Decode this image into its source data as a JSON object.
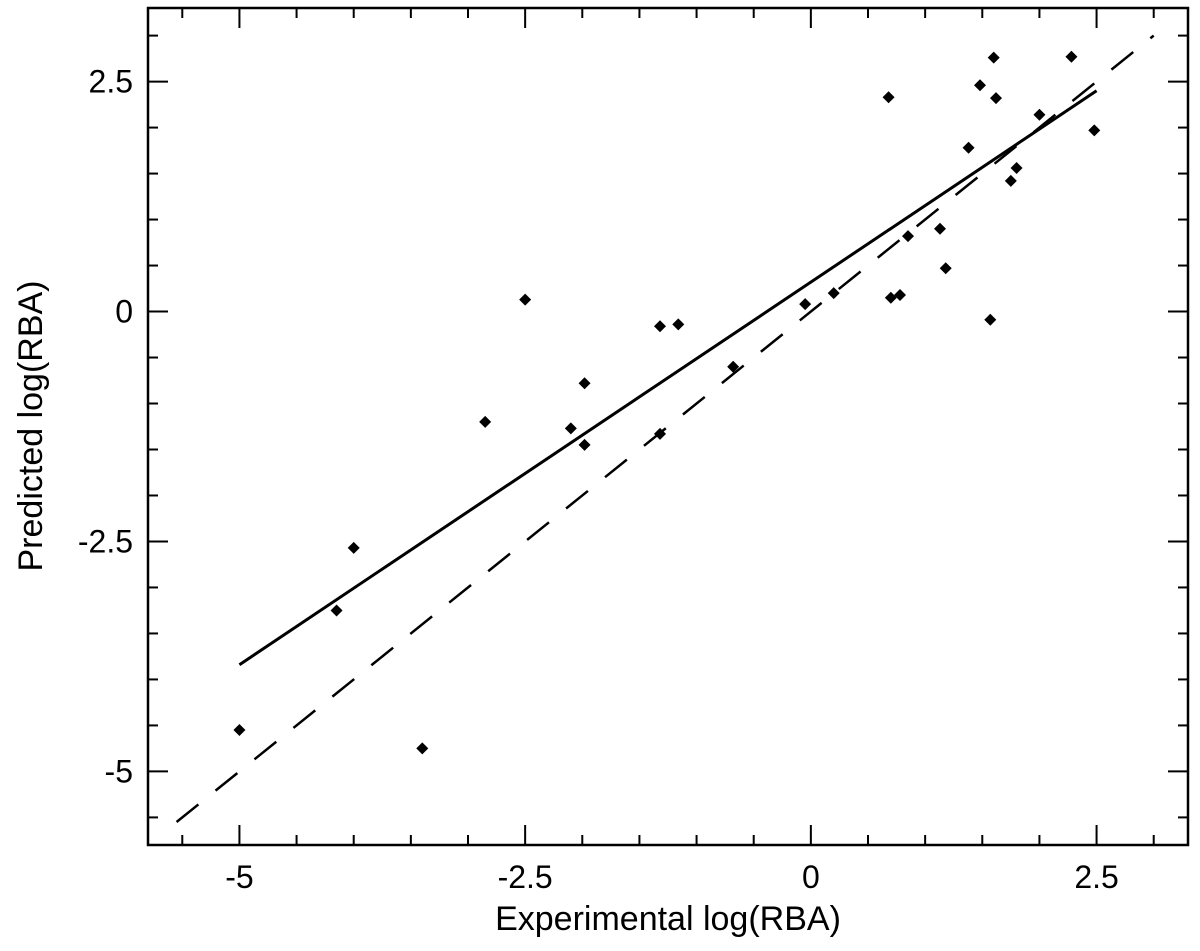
{
  "chart_data": {
    "type": "scatter",
    "title": "",
    "xlabel": "Experimental log(RBA)",
    "ylabel": "Predicted log(RBA)",
    "xlim": [
      -5.8,
      3.3
    ],
    "ylim": [
      -5.8,
      3.3
    ],
    "major_ticks": [
      -5,
      -2.5,
      0,
      2.5
    ],
    "tick_labels": [
      "-5",
      "-2.5",
      "0",
      "2.5"
    ],
    "minor_ticks": [
      -5.5,
      -4.5,
      -4.0,
      -3.5,
      -3.0,
      -2.0,
      -1.5,
      -1.0,
      -0.5,
      0.5,
      1.0,
      1.5,
      2.0,
      3.0
    ],
    "grid": false,
    "legend": "none",
    "marker_color": "#000000",
    "points": [
      {
        "x": -5.0,
        "y": -4.55
      },
      {
        "x": -4.15,
        "y": -3.25
      },
      {
        "x": -4.0,
        "y": -2.57
      },
      {
        "x": -3.4,
        "y": -4.75
      },
      {
        "x": -2.85,
        "y": -1.2
      },
      {
        "x": -2.5,
        "y": 0.13
      },
      {
        "x": -2.1,
        "y": -1.27
      },
      {
        "x": -1.98,
        "y": -0.78
      },
      {
        "x": -1.98,
        "y": -1.45
      },
      {
        "x": -1.32,
        "y": -1.33
      },
      {
        "x": -1.32,
        "y": -0.16
      },
      {
        "x": -1.16,
        "y": -0.14
      },
      {
        "x": -0.68,
        "y": -0.6
      },
      {
        "x": -0.05,
        "y": 0.08
      },
      {
        "x": 0.2,
        "y": 0.2
      },
      {
        "x": 0.68,
        "y": 2.33
      },
      {
        "x": 0.7,
        "y": 0.15
      },
      {
        "x": 0.78,
        "y": 0.18
      },
      {
        "x": 0.85,
        "y": 0.82
      },
      {
        "x": 1.13,
        "y": 0.9
      },
      {
        "x": 1.18,
        "y": 0.47
      },
      {
        "x": 1.38,
        "y": 1.78
      },
      {
        "x": 1.48,
        "y": 2.46
      },
      {
        "x": 1.57,
        "y": -0.09
      },
      {
        "x": 1.6,
        "y": 2.76
      },
      {
        "x": 1.62,
        "y": 2.32
      },
      {
        "x": 1.75,
        "y": 1.42
      },
      {
        "x": 1.8,
        "y": 1.56
      },
      {
        "x": 2.0,
        "y": 2.14
      },
      {
        "x": 2.28,
        "y": 2.77
      },
      {
        "x": 2.48,
        "y": 1.97
      }
    ],
    "fit_line": {
      "style": "solid",
      "x": [
        -5.0,
        2.5
      ],
      "y": [
        -3.84,
        2.4
      ]
    },
    "identity_line": {
      "style": "dashed",
      "x": [
        -5.55,
        3.0
      ],
      "y": [
        -5.55,
        3.0
      ]
    }
  }
}
